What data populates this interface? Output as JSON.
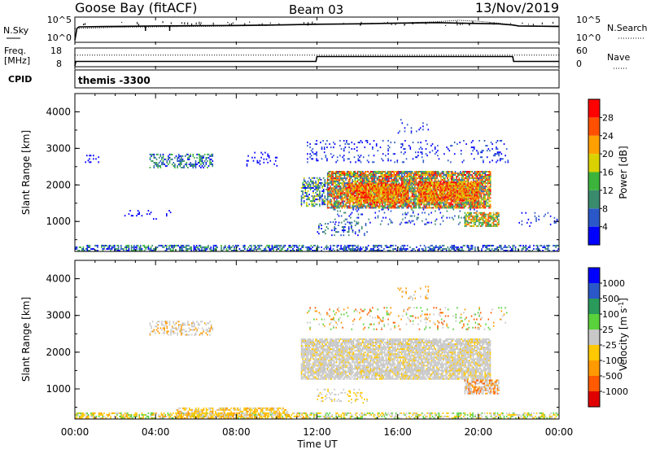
{
  "header": {
    "station": "Goose Bay (fitACF)",
    "beam": "Beam 03",
    "date": "13/Nov/2019"
  },
  "noise_panel": {
    "left_label": "N.Sky",
    "right_label": "N.Search",
    "left_ticks": [
      "10^5",
      "10^0"
    ],
    "right_ticks": [
      "10^5",
      "10^0"
    ]
  },
  "freq_panel": {
    "left_label_1": "Freq.",
    "left_label_2": "[MHz]",
    "right_label": "Nave",
    "left_ticks": [
      "18",
      "8"
    ],
    "right_ticks": [
      "60",
      "0"
    ]
  },
  "cpid": {
    "label": "CPID",
    "value": "themis -3300"
  },
  "axes": {
    "ylabel": "Slant Range [km]",
    "xlabel": "Time UT",
    "ytick_labels": [
      "1000",
      "2000",
      "3000",
      "4000"
    ],
    "xtick_labels": [
      "00:00",
      "04:00",
      "08:00",
      "12:00",
      "16:00",
      "20:00",
      "00:00"
    ]
  },
  "colors": {
    "power": [
      "#0000ff",
      "#2a58c8",
      "#3a8a6e",
      "#3cb43c",
      "#d9d200",
      "#ffa000",
      "#ff5000",
      "#ff0000"
    ],
    "velocity": [
      "#e00000",
      "#ff5a00",
      "#ff9a00",
      "#ffc800",
      "#c8c8c8",
      "#5ad23c",
      "#2a9a5a",
      "#2a58c8",
      "#0000ff"
    ]
  },
  "chart_data": [
    {
      "type": "line",
      "name": "noise",
      "x_range_hours": [
        0,
        24
      ],
      "series": [
        {
          "name": "N.Sky",
          "style": "solid",
          "x": [
            0,
            0.1,
            0.2,
            2,
            4,
            6,
            8,
            10,
            12,
            14,
            16,
            18,
            19,
            21,
            21.7,
            22,
            24
          ],
          "y": [
            0.05,
            0.55,
            0.62,
            0.64,
            0.66,
            0.67,
            0.68,
            0.7,
            0.73,
            0.75,
            0.78,
            0.8,
            0.78,
            0.75,
            0.7,
            0.66,
            0.64
          ]
        },
        {
          "name": "N.Search",
          "style": "dotted",
          "x": [
            0,
            2,
            4,
            8,
            12,
            16,
            18,
            19,
            20,
            21,
            22,
            24
          ],
          "y": [
            0.55,
            0.6,
            0.62,
            0.66,
            0.72,
            0.78,
            0.84,
            0.9,
            0.86,
            0.78,
            0.66,
            0.62
          ]
        }
      ]
    },
    {
      "type": "line",
      "name": "frequency",
      "x_range_hours": [
        0,
        24
      ],
      "series": [
        {
          "name": "Freq.",
          "unit": "MHz",
          "style": "solid",
          "x": [
            0,
            0.05,
            11.95,
            12.0,
            21.7,
            21.75,
            24
          ],
          "y": [
            8,
            10.6,
            10.6,
            13.5,
            13.5,
            10.6,
            10.6
          ]
        },
        {
          "name": "Nave",
          "style": "dotted",
          "x": [
            0,
            24
          ],
          "y": [
            38,
            38
          ]
        }
      ]
    },
    {
      "type": "heatmap",
      "name": "Power",
      "unit": "dB",
      "colorbar_ticks": [
        4,
        8,
        12,
        16,
        20,
        24,
        28
      ],
      "clim": [
        0,
        30
      ],
      "x_range_hours": [
        0,
        24
      ],
      "ylim_km": [
        180,
        4500
      ],
      "regions": [
        {
          "t": [
            0,
            12
          ],
          "r": [
            180,
            320
          ],
          "density": 0.55,
          "levels": [
            0,
            1,
            2,
            3
          ]
        },
        {
          "t": [
            12,
            24
          ],
          "r": [
            180,
            330
          ],
          "density": 0.5,
          "levels": [
            0,
            1,
            2
          ]
        },
        {
          "t": [
            0.5,
            1.2
          ],
          "r": [
            2600,
            2800
          ],
          "density": 0.25,
          "levels": [
            0
          ]
        },
        {
          "t": [
            3.7,
            6.8
          ],
          "r": [
            2450,
            2850
          ],
          "density": 0.45,
          "levels": [
            0,
            1,
            2,
            3
          ]
        },
        {
          "t": [
            8.5,
            10.0
          ],
          "r": [
            2500,
            2900
          ],
          "density": 0.15,
          "levels": [
            0
          ]
        },
        {
          "t": [
            11.2,
            12.5
          ],
          "r": [
            1400,
            2200
          ],
          "density": 0.5,
          "levels": [
            0,
            1,
            2,
            3,
            4
          ]
        },
        {
          "t": [
            12.5,
            20.6
          ],
          "r": [
            1350,
            2350
          ],
          "density": 0.85,
          "levels": [
            1,
            2,
            3,
            4,
            5,
            6,
            7
          ]
        },
        {
          "t": [
            13.5,
            16.5
          ],
          "r": [
            1500,
            2000
          ],
          "density": 0.85,
          "levels": [
            4,
            5,
            6,
            7
          ]
        },
        {
          "t": [
            17.0,
            20.0
          ],
          "r": [
            1550,
            2050
          ],
          "density": 0.85,
          "levels": [
            4,
            5,
            6,
            7
          ]
        },
        {
          "t": [
            12.8,
            20.6
          ],
          "r": [
            900,
            1350
          ],
          "density": 0.12,
          "levels": [
            0,
            1,
            2
          ]
        },
        {
          "t": [
            12.0,
            14.5
          ],
          "r": [
            600,
            1000
          ],
          "density": 0.2,
          "levels": [
            0,
            1,
            2
          ]
        },
        {
          "t": [
            19.3,
            21.0
          ],
          "r": [
            850,
            1250
          ],
          "density": 0.75,
          "levels": [
            2,
            3,
            4,
            5,
            6
          ]
        },
        {
          "t": [
            11.5,
            21.5
          ],
          "r": [
            2600,
            3200
          ],
          "density": 0.12,
          "levels": [
            0,
            1
          ]
        },
        {
          "t": [
            16.0,
            17.5
          ],
          "r": [
            3400,
            3800
          ],
          "density": 0.1,
          "levels": [
            0,
            1
          ]
        },
        {
          "t": [
            2.0,
            5.0
          ],
          "r": [
            1000,
            1300
          ],
          "density": 0.05,
          "levels": [
            0
          ]
        },
        {
          "t": [
            22.0,
            24
          ],
          "r": [
            850,
            1250
          ],
          "density": 0.1,
          "levels": [
            0,
            1
          ]
        }
      ]
    },
    {
      "type": "heatmap",
      "name": "Velocity",
      "unit": "m s^-1",
      "colorbar_ticks": [
        "1000",
        "500",
        "100",
        "25",
        "-25",
        "-100",
        "-500",
        "-1000"
      ],
      "clim": [
        -1000,
        1000
      ],
      "x_range_hours": [
        0,
        24
      ],
      "ylim_km": [
        180,
        4500
      ],
      "regions": [
        {
          "t": [
            0,
            11.5
          ],
          "r": [
            180,
            330
          ],
          "density": 0.55,
          "levels": [
            3,
            5,
            3,
            4,
            2
          ]
        },
        {
          "t": [
            5.0,
            10.5
          ],
          "r": [
            180,
            480
          ],
          "density": 0.6,
          "levels": [
            3,
            3,
            2,
            4
          ]
        },
        {
          "t": [
            11.5,
            24
          ],
          "r": [
            180,
            330
          ],
          "density": 0.5,
          "levels": [
            4,
            5,
            3
          ]
        },
        {
          "t": [
            3.7,
            6.8
          ],
          "r": [
            2450,
            2850
          ],
          "density": 0.35,
          "levels": [
            4,
            4,
            2
          ]
        },
        {
          "t": [
            11.2,
            20.6
          ],
          "r": [
            1250,
            2350
          ],
          "density": 0.85,
          "levels": [
            4,
            4,
            4,
            4,
            4,
            3
          ]
        },
        {
          "t": [
            12.0,
            14.5
          ],
          "r": [
            600,
            1000
          ],
          "density": 0.2,
          "levels": [
            4,
            3
          ]
        },
        {
          "t": [
            19.3,
            21.0
          ],
          "r": [
            850,
            1250
          ],
          "density": 0.75,
          "levels": [
            4,
            4,
            2,
            1
          ]
        },
        {
          "t": [
            11.5,
            21.5
          ],
          "r": [
            2600,
            3200
          ],
          "density": 0.12,
          "levels": [
            1,
            2,
            4,
            5
          ]
        },
        {
          "t": [
            16.0,
            17.5
          ],
          "r": [
            3400,
            3800
          ],
          "density": 0.1,
          "levels": [
            2,
            4
          ]
        }
      ]
    }
  ]
}
